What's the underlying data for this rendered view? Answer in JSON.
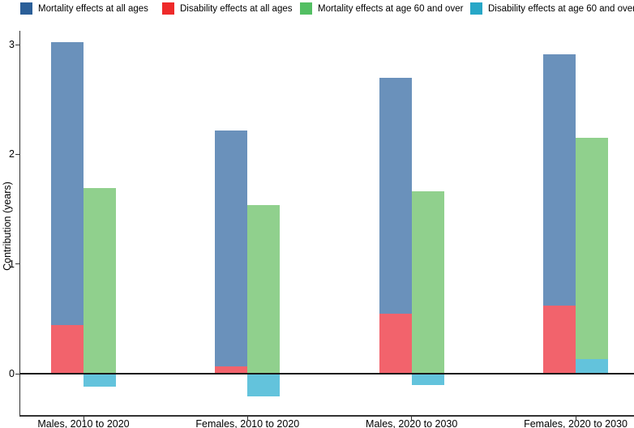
{
  "y_axis": {
    "label": "Contribution (years)",
    "ticks": [
      0,
      1,
      2,
      3
    ]
  },
  "chart_data": {
    "type": "bar",
    "title": "",
    "xlabel": "",
    "ylabel": "Contribution (years)",
    "ylim": [
      -0.38,
      3.07
    ],
    "grid": false,
    "legend_position": "top",
    "layout": "grouped bars; within each category the disability bar overlaps in front of its mortality bar (all-ages pair on left, age-60+ pair on right)",
    "categories": [
      "Males, 2010 to 2020",
      "Females, 2010 to 2020",
      "Males, 2020 to 2030",
      "Females, 2020 to 2030"
    ],
    "series": [
      {
        "name": "Mortality effects at all ages",
        "legend_color": "#2b5f98",
        "fill_color": "#6a91bb",
        "values": [
          3.02,
          2.22,
          2.7,
          2.91
        ]
      },
      {
        "name": "Disability effects at all ages",
        "legend_color": "#ee2a2a",
        "fill_color": "#f2636c",
        "values": [
          0.44,
          0.07,
          0.55,
          0.62
        ]
      },
      {
        "name": "Mortality effects at age 60 and over",
        "legend_color": "#53bf63",
        "fill_color": "#90d08d",
        "values": [
          1.69,
          1.54,
          1.66,
          2.15
        ]
      },
      {
        "name": "Disability effects at age 60 and over",
        "legend_color": "#27a7c7",
        "fill_color": "#63c3dc",
        "values": [
          -0.12,
          -0.21,
          -0.1,
          0.13
        ]
      }
    ]
  }
}
